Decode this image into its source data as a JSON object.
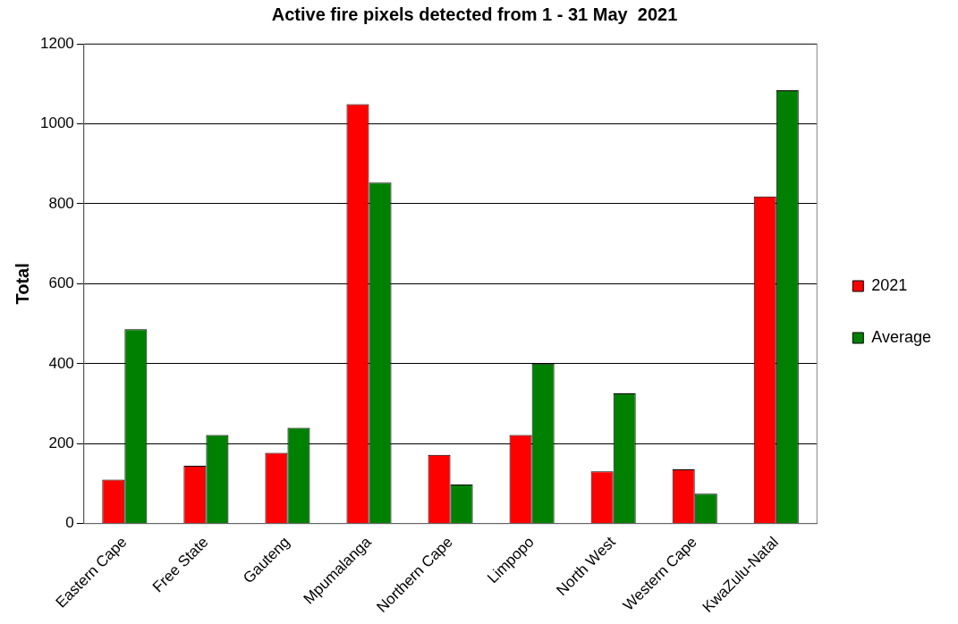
{
  "chart_data": {
    "type": "bar",
    "title": "Active fire pixels detected from 1 - 31 May  2021",
    "ylabel": "Total",
    "categories": [
      "Eastern Cape",
      "Free State",
      "Gauteng",
      "Mpumalanga",
      "Northern Cape",
      "Limpopo",
      "North West",
      "Western Cape",
      "KwaZulu-Natal"
    ],
    "series": [
      {
        "name": "2021",
        "color": "#ff0000",
        "values": [
          110,
          145,
          177,
          1049,
          172,
          222,
          131,
          136,
          818
        ]
      },
      {
        "name": "Average",
        "color": "#008000",
        "values": [
          486,
          222,
          240,
          853,
          98,
          400,
          326,
          75,
          1084
        ]
      }
    ],
    "ylim": [
      0,
      1200
    ],
    "yticks": [
      0,
      200,
      400,
      600,
      800,
      1000,
      1200
    ],
    "grid": "y",
    "legend": "right"
  }
}
